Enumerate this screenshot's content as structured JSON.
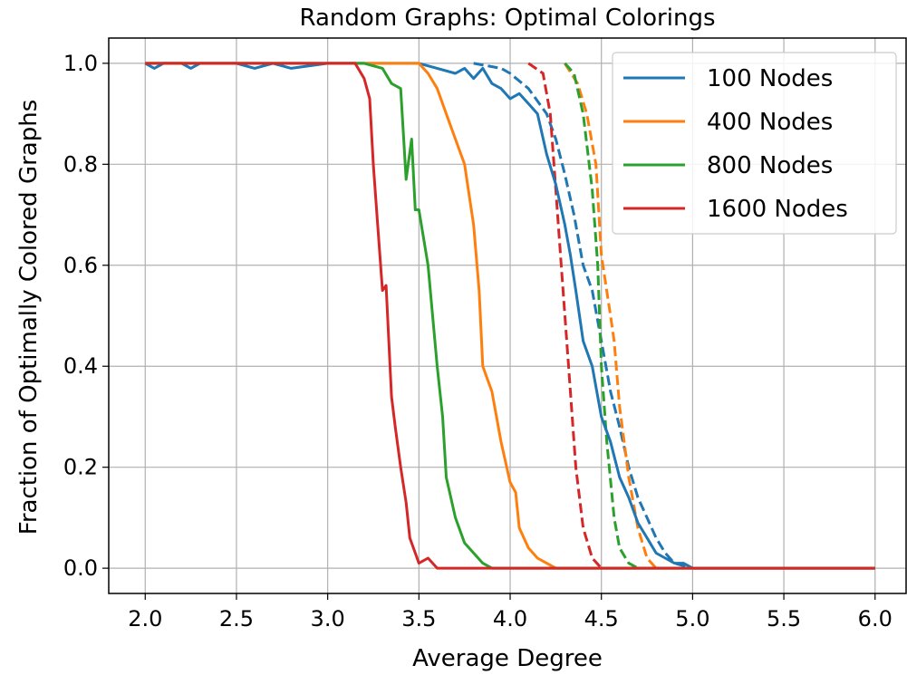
{
  "chart_data": {
    "type": "line",
    "title": "Random Graphs: Optimal Colorings",
    "xlabel": "Average Degree",
    "ylabel": "Fraction of Optimally Colored Graphs",
    "xlim": [
      1.8,
      6.17
    ],
    "ylim": [
      -0.05,
      1.05
    ],
    "xticks": [
      "2.0",
      "2.5",
      "3.0",
      "3.5",
      "4.0",
      "4.5",
      "5.0",
      "5.5",
      "6.0"
    ],
    "yticks": [
      "0.0",
      "0.2",
      "0.4",
      "0.6",
      "0.8",
      "1.0"
    ],
    "grid": true,
    "legend_position": "top-right",
    "series": [
      {
        "name": "100 Nodes",
        "color": "#1f77b4",
        "style": "solid",
        "points": [
          [
            2.0,
            1.0
          ],
          [
            2.05,
            0.99
          ],
          [
            2.1,
            1.0
          ],
          [
            2.2,
            1.0
          ],
          [
            2.25,
            0.99
          ],
          [
            2.3,
            1.0
          ],
          [
            2.5,
            1.0
          ],
          [
            2.6,
            0.99
          ],
          [
            2.7,
            1.0
          ],
          [
            2.8,
            0.99
          ],
          [
            3.0,
            1.0
          ],
          [
            3.3,
            1.0
          ],
          [
            3.5,
            1.0
          ],
          [
            3.6,
            0.99
          ],
          [
            3.7,
            0.98
          ],
          [
            3.75,
            0.99
          ],
          [
            3.8,
            0.97
          ],
          [
            3.85,
            0.99
          ],
          [
            3.9,
            0.96
          ],
          [
            3.95,
            0.95
          ],
          [
            4.0,
            0.93
          ],
          [
            4.05,
            0.94
          ],
          [
            4.1,
            0.92
          ],
          [
            4.15,
            0.9
          ],
          [
            4.2,
            0.82
          ],
          [
            4.25,
            0.76
          ],
          [
            4.3,
            0.68
          ],
          [
            4.33,
            0.62
          ],
          [
            4.36,
            0.55
          ],
          [
            4.4,
            0.45
          ],
          [
            4.45,
            0.4
          ],
          [
            4.5,
            0.3
          ],
          [
            4.55,
            0.25
          ],
          [
            4.6,
            0.18
          ],
          [
            4.65,
            0.14
          ],
          [
            4.7,
            0.09
          ],
          [
            4.75,
            0.06
          ],
          [
            4.8,
            0.03
          ],
          [
            4.85,
            0.02
          ],
          [
            4.9,
            0.01
          ],
          [
            4.95,
            0.01
          ],
          [
            5.0,
            0.0
          ],
          [
            6.0,
            0.0
          ]
        ]
      },
      {
        "name": "100 Nodes",
        "color": "#1f77b4",
        "style": "dashed",
        "points": [
          [
            3.8,
            1.0
          ],
          [
            3.95,
            0.99
          ],
          [
            4.0,
            0.98
          ],
          [
            4.1,
            0.95
          ],
          [
            4.2,
            0.9
          ],
          [
            4.25,
            0.85
          ],
          [
            4.3,
            0.78
          ],
          [
            4.35,
            0.7
          ],
          [
            4.4,
            0.6
          ],
          [
            4.45,
            0.55
          ],
          [
            4.5,
            0.45
          ],
          [
            4.55,
            0.35
          ],
          [
            4.6,
            0.28
          ],
          [
            4.65,
            0.2
          ],
          [
            4.7,
            0.14
          ],
          [
            4.75,
            0.1
          ],
          [
            4.8,
            0.06
          ],
          [
            4.85,
            0.03
          ],
          [
            4.9,
            0.01
          ],
          [
            5.0,
            0.0
          ]
        ]
      },
      {
        "name": "400 Nodes",
        "color": "#ff7f0e",
        "style": "solid",
        "points": [
          [
            2.0,
            1.0
          ],
          [
            3.5,
            1.0
          ],
          [
            3.55,
            0.98
          ],
          [
            3.6,
            0.95
          ],
          [
            3.65,
            0.9
          ],
          [
            3.7,
            0.85
          ],
          [
            3.75,
            0.8
          ],
          [
            3.8,
            0.68
          ],
          [
            3.83,
            0.55
          ],
          [
            3.85,
            0.4
          ],
          [
            3.9,
            0.35
          ],
          [
            3.95,
            0.25
          ],
          [
            4.0,
            0.17
          ],
          [
            4.03,
            0.15
          ],
          [
            4.05,
            0.08
          ],
          [
            4.1,
            0.04
          ],
          [
            4.15,
            0.02
          ],
          [
            4.2,
            0.01
          ],
          [
            4.25,
            0.0
          ],
          [
            6.0,
            0.0
          ]
        ]
      },
      {
        "name": "400 Nodes",
        "color": "#ff7f0e",
        "style": "dashed",
        "points": [
          [
            4.3,
            1.0
          ],
          [
            4.37,
            0.96
          ],
          [
            4.42,
            0.9
          ],
          [
            4.47,
            0.8
          ],
          [
            4.5,
            0.62
          ],
          [
            4.55,
            0.5
          ],
          [
            4.57,
            0.45
          ],
          [
            4.6,
            0.32
          ],
          [
            4.65,
            0.18
          ],
          [
            4.7,
            0.08
          ],
          [
            4.75,
            0.02
          ],
          [
            4.8,
            0.0
          ]
        ]
      },
      {
        "name": "800 Nodes",
        "color": "#2ca02c",
        "style": "solid",
        "points": [
          [
            2.0,
            1.0
          ],
          [
            3.2,
            1.0
          ],
          [
            3.3,
            0.99
          ],
          [
            3.35,
            0.96
          ],
          [
            3.4,
            0.95
          ],
          [
            3.43,
            0.77
          ],
          [
            3.46,
            0.85
          ],
          [
            3.48,
            0.71
          ],
          [
            3.5,
            0.71
          ],
          [
            3.55,
            0.6
          ],
          [
            3.6,
            0.4
          ],
          [
            3.63,
            0.3
          ],
          [
            3.65,
            0.18
          ],
          [
            3.7,
            0.1
          ],
          [
            3.75,
            0.05
          ],
          [
            3.8,
            0.03
          ],
          [
            3.85,
            0.01
          ],
          [
            3.9,
            0.0
          ],
          [
            6.0,
            0.0
          ]
        ]
      },
      {
        "name": "800 Nodes",
        "color": "#2ca02c",
        "style": "dashed",
        "points": [
          [
            4.3,
            1.0
          ],
          [
            4.35,
            0.98
          ],
          [
            4.4,
            0.9
          ],
          [
            4.45,
            0.75
          ],
          [
            4.48,
            0.6
          ],
          [
            4.5,
            0.4
          ],
          [
            4.53,
            0.25
          ],
          [
            4.57,
            0.1
          ],
          [
            4.6,
            0.04
          ],
          [
            4.65,
            0.01
          ],
          [
            4.7,
            0.0
          ]
        ]
      },
      {
        "name": "1600 Nodes",
        "color": "#d62728",
        "style": "solid",
        "points": [
          [
            2.0,
            1.0
          ],
          [
            3.15,
            1.0
          ],
          [
            3.2,
            0.97
          ],
          [
            3.23,
            0.93
          ],
          [
            3.25,
            0.8
          ],
          [
            3.27,
            0.7
          ],
          [
            3.3,
            0.55
          ],
          [
            3.32,
            0.56
          ],
          [
            3.35,
            0.34
          ],
          [
            3.37,
            0.28
          ],
          [
            3.4,
            0.2
          ],
          [
            3.43,
            0.13
          ],
          [
            3.45,
            0.06
          ],
          [
            3.48,
            0.03
          ],
          [
            3.5,
            0.01
          ],
          [
            3.55,
            0.02
          ],
          [
            3.6,
            0.0
          ],
          [
            6.0,
            0.0
          ]
        ]
      },
      {
        "name": "1600 Nodes",
        "color": "#d62728",
        "style": "dashed",
        "points": [
          [
            4.1,
            1.0
          ],
          [
            4.18,
            0.98
          ],
          [
            4.22,
            0.9
          ],
          [
            4.25,
            0.75
          ],
          [
            4.28,
            0.6
          ],
          [
            4.32,
            0.4
          ],
          [
            4.36,
            0.2
          ],
          [
            4.4,
            0.08
          ],
          [
            4.45,
            0.02
          ],
          [
            4.5,
            0.0
          ]
        ]
      }
    ]
  },
  "legend": [
    {
      "label": "100 Nodes",
      "color": "#1f77b4"
    },
    {
      "label": "400 Nodes",
      "color": "#ff7f0e"
    },
    {
      "label": "800 Nodes",
      "color": "#2ca02c"
    },
    {
      "label": "1600 Nodes",
      "color": "#d62728"
    }
  ]
}
